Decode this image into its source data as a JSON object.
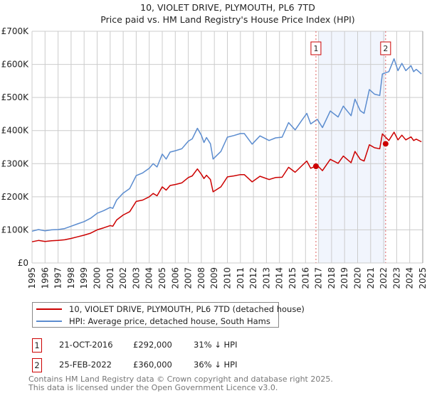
{
  "chart_data": {
    "type": "line",
    "title": "10, VIOLET DRIVE, PLYMOUTH, PL6 7TD",
    "subtitle": "Price paid vs. HM Land Registry's House Price Index (HPI)",
    "xlim": [
      1995,
      2025
    ],
    "ylim": [
      0,
      700000
    ],
    "x_ticks": [
      "1995",
      "1996",
      "1997",
      "1998",
      "1999",
      "2000",
      "2001",
      "2002",
      "2003",
      "2004",
      "2005",
      "2006",
      "2007",
      "2008",
      "2009",
      "2010",
      "2011",
      "2012",
      "2013",
      "2014",
      "2015",
      "2016",
      "2017",
      "2018",
      "2019",
      "2020",
      "2021",
      "2022",
      "2023",
      "2024",
      "2025"
    ],
    "y_ticks": [
      {
        "v": 0,
        "label": "£0"
      },
      {
        "v": 100000,
        "label": "£100K"
      },
      {
        "v": 200000,
        "label": "£200K"
      },
      {
        "v": 300000,
        "label": "£300K"
      },
      {
        "v": 400000,
        "label": "£400K"
      },
      {
        "v": 500000,
        "label": "£500K"
      },
      {
        "v": 600000,
        "label": "£600K"
      },
      {
        "v": 700000,
        "label": "£700K"
      }
    ],
    "grid": true,
    "shaded_period": [
      2016.8,
      2022.15
    ],
    "series": [
      {
        "name": "10, VIOLET DRIVE, PLYMOUTH, PL6 7TD (detached house)",
        "color": "#cc0000",
        "points": [
          [
            1995.0,
            64
          ],
          [
            1995.5,
            68
          ],
          [
            1996.0,
            65
          ],
          [
            1996.5,
            67
          ],
          [
            1997.0,
            68
          ],
          [
            1997.5,
            70
          ],
          [
            1998.0,
            74
          ],
          [
            1998.5,
            79
          ],
          [
            1999.0,
            84
          ],
          [
            1999.5,
            90
          ],
          [
            2000.0,
            100
          ],
          [
            2000.5,
            106
          ],
          [
            2001.0,
            113
          ],
          [
            2001.2,
            111
          ],
          [
            2001.5,
            130
          ],
          [
            2002.0,
            145
          ],
          [
            2002.5,
            155
          ],
          [
            2003.0,
            186
          ],
          [
            2003.5,
            190
          ],
          [
            2004.0,
            200
          ],
          [
            2004.3,
            210
          ],
          [
            2004.6,
            203
          ],
          [
            2005.0,
            230
          ],
          [
            2005.3,
            220
          ],
          [
            2005.6,
            234
          ],
          [
            2006.0,
            237
          ],
          [
            2006.5,
            242
          ],
          [
            2007.0,
            258
          ],
          [
            2007.3,
            263
          ],
          [
            2007.7,
            284
          ],
          [
            2008.0,
            268
          ],
          [
            2008.2,
            255
          ],
          [
            2008.4,
            265
          ],
          [
            2008.7,
            252
          ],
          [
            2008.9,
            215
          ],
          [
            2009.5,
            230
          ],
          [
            2010.0,
            260
          ],
          [
            2010.5,
            263
          ],
          [
            2011.0,
            267
          ],
          [
            2011.3,
            267
          ],
          [
            2011.9,
            245
          ],
          [
            2012.5,
            262
          ],
          [
            2013.2,
            252
          ],
          [
            2013.7,
            258
          ],
          [
            2014.2,
            259
          ],
          [
            2014.7,
            289
          ],
          [
            2015.2,
            274
          ],
          [
            2015.7,
            293
          ],
          [
            2016.1,
            308
          ],
          [
            2016.4,
            286
          ],
          [
            2016.9,
            295
          ],
          [
            2017.3,
            279
          ],
          [
            2017.9,
            313
          ],
          [
            2018.5,
            301
          ],
          [
            2018.9,
            323
          ],
          [
            2019.5,
            303
          ],
          [
            2019.8,
            337
          ],
          [
            2020.2,
            313
          ],
          [
            2020.5,
            308
          ],
          [
            2020.9,
            357
          ],
          [
            2021.3,
            348
          ],
          [
            2021.7,
            345
          ],
          [
            2021.9,
            390
          ],
          [
            2022.4,
            370
          ],
          [
            2022.8,
            395
          ],
          [
            2023.1,
            372
          ],
          [
            2023.4,
            386
          ],
          [
            2023.7,
            372
          ],
          [
            2024.1,
            381
          ],
          [
            2024.3,
            370
          ],
          [
            2024.5,
            374
          ],
          [
            2024.9,
            366
          ]
        ]
      },
      {
        "name": "HPI: Average price, detached house, South Hams",
        "color": "#5b8ccf",
        "points": [
          [
            1995.0,
            96
          ],
          [
            1995.5,
            101
          ],
          [
            1996.0,
            97
          ],
          [
            1996.5,
            100
          ],
          [
            1997.0,
            101
          ],
          [
            1997.5,
            104
          ],
          [
            1998.0,
            111
          ],
          [
            1998.5,
            118
          ],
          [
            1999.0,
            125
          ],
          [
            1999.5,
            135
          ],
          [
            2000.0,
            150
          ],
          [
            2000.5,
            158
          ],
          [
            2001.0,
            168
          ],
          [
            2001.2,
            165
          ],
          [
            2001.5,
            190
          ],
          [
            2002.0,
            211
          ],
          [
            2002.5,
            225
          ],
          [
            2003.0,
            264
          ],
          [
            2003.5,
            272
          ],
          [
            2004.0,
            286
          ],
          [
            2004.3,
            300
          ],
          [
            2004.6,
            290
          ],
          [
            2005.0,
            329
          ],
          [
            2005.3,
            314
          ],
          [
            2005.6,
            335
          ],
          [
            2006.0,
            339
          ],
          [
            2006.5,
            345
          ],
          [
            2007.0,
            368
          ],
          [
            2007.3,
            375
          ],
          [
            2007.7,
            407
          ],
          [
            2008.0,
            386
          ],
          [
            2008.2,
            364
          ],
          [
            2008.4,
            379
          ],
          [
            2008.7,
            360
          ],
          [
            2008.9,
            314
          ],
          [
            2009.5,
            337
          ],
          [
            2010.0,
            380
          ],
          [
            2010.5,
            385
          ],
          [
            2011.0,
            391
          ],
          [
            2011.3,
            391
          ],
          [
            2011.9,
            359
          ],
          [
            2012.5,
            384
          ],
          [
            2013.2,
            370
          ],
          [
            2013.7,
            378
          ],
          [
            2014.2,
            380
          ],
          [
            2014.7,
            424
          ],
          [
            2015.2,
            402
          ],
          [
            2015.7,
            430
          ],
          [
            2016.1,
            452
          ],
          [
            2016.4,
            420
          ],
          [
            2016.9,
            434
          ],
          [
            2017.3,
            409
          ],
          [
            2017.9,
            459
          ],
          [
            2018.5,
            441
          ],
          [
            2018.9,
            474
          ],
          [
            2019.5,
            445
          ],
          [
            2019.8,
            495
          ],
          [
            2020.2,
            460
          ],
          [
            2020.5,
            452
          ],
          [
            2020.9,
            524
          ],
          [
            2021.3,
            510
          ],
          [
            2021.7,
            506
          ],
          [
            2021.9,
            571
          ],
          [
            2022.4,
            578
          ],
          [
            2022.8,
            617
          ],
          [
            2023.1,
            581
          ],
          [
            2023.4,
            603
          ],
          [
            2023.7,
            581
          ],
          [
            2024.1,
            596
          ],
          [
            2024.3,
            578
          ],
          [
            2024.5,
            585
          ],
          [
            2024.9,
            571
          ]
        ]
      }
    ],
    "sales": [
      {
        "id": "1",
        "x": 2016.8,
        "y": 292000,
        "date": "21-OCT-2016",
        "price": "£292,000",
        "hpi": "31% ↓ HPI"
      },
      {
        "id": "2",
        "x": 2022.15,
        "y": 360000,
        "date": "25-FEB-2022",
        "price": "£360,000",
        "hpi": "36% ↓ HPI"
      }
    ],
    "legend_placement": "below"
  },
  "footer": {
    "line1": "Contains HM Land Registry data © Crown copyright and database right 2025.",
    "line2": "This data is licensed under the Open Government Licence v3.0."
  }
}
